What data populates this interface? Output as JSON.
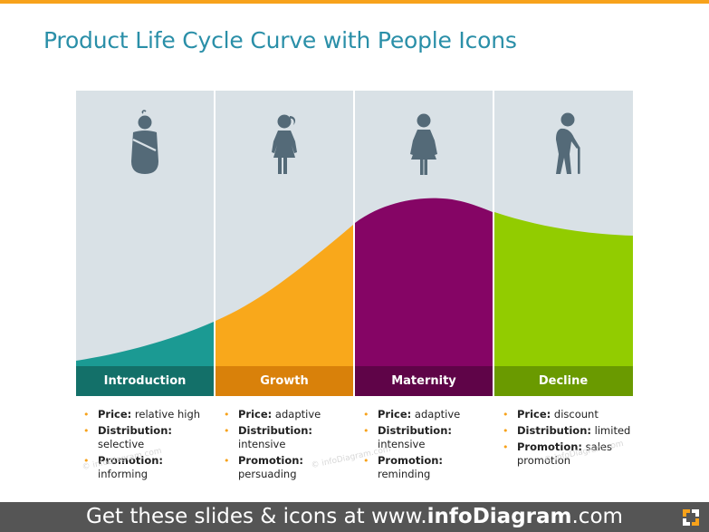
{
  "title": "Product Life Cycle Curve with People Icons",
  "colors": {
    "accent": "#f7a21b",
    "title": "#2a8fa8",
    "background_panel": "#d9e1e6",
    "icon": "#546a78"
  },
  "stages": [
    {
      "label": "Introduction",
      "icon": "baby-icon",
      "fill_color": "#1b9a93",
      "label_color": "#137069",
      "details": [
        {
          "key": "Price:",
          "value": "relative high"
        },
        {
          "key": "Distribution:",
          "value": "selective"
        },
        {
          "key": "Promotion:",
          "value": "informing"
        }
      ]
    },
    {
      "label": "Growth",
      "icon": "girl-icon",
      "fill_color": "#f9a81b",
      "label_color": "#d9810a",
      "details": [
        {
          "key": "Price:",
          "value": "adaptive"
        },
        {
          "key": "Distribution:",
          "value": "intensive"
        },
        {
          "key": "Promotion:",
          "value": "persuading"
        }
      ]
    },
    {
      "label": "Maternity",
      "icon": "woman-icon",
      "fill_color": "#850565",
      "label_color": "#5f0448",
      "details": [
        {
          "key": "Price:",
          "value": "adaptive"
        },
        {
          "key": "Distribution:",
          "value": "intensive"
        },
        {
          "key": "Promotion:",
          "value": "reminding"
        }
      ]
    },
    {
      "label": "Decline",
      "icon": "elderly-with-cane-icon",
      "fill_color": "#92cc00",
      "label_color": "#6a9a00",
      "details": [
        {
          "key": "Price:",
          "value": "discount"
        },
        {
          "key": "Distribution:",
          "value": "limited"
        },
        {
          "key": "Promotion:",
          "value": "sales promotion"
        }
      ]
    }
  ],
  "watermark": "© infoDiagram.com",
  "footer": {
    "prefix": "Get these slides & icons at www.",
    "brand": "infoDiagram",
    "suffix": ".com"
  }
}
